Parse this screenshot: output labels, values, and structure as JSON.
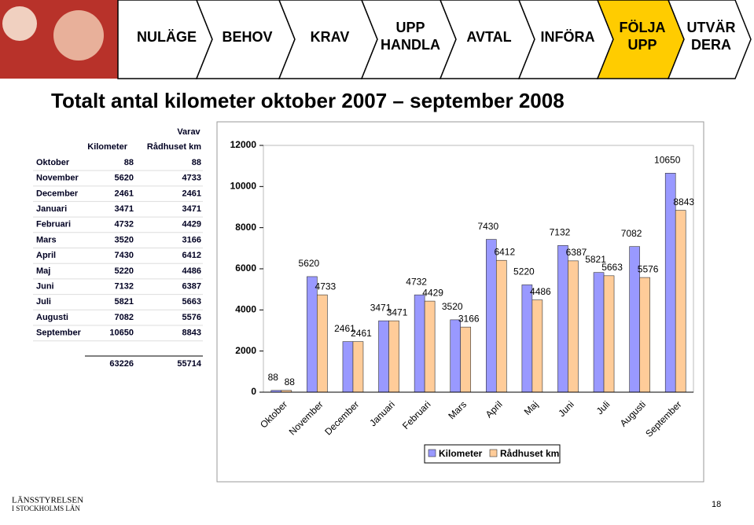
{
  "nav": [
    [
      "NULÄGE"
    ],
    [
      "BEHOV"
    ],
    [
      "KRAV"
    ],
    [
      "UPP",
      "HANDLA"
    ],
    [
      "AVTAL"
    ],
    [
      "INFÖRA"
    ],
    [
      "FÖLJA",
      "UPP"
    ],
    [
      "UTVÄR",
      "DERA"
    ]
  ],
  "title": "Totalt antal kilometer oktober 2007 – september 2008",
  "table": {
    "group_header": "Varav",
    "headers": [
      "Kilometer",
      "Rådhuset km"
    ],
    "rows": [
      [
        "Oktober",
        "88",
        "88"
      ],
      [
        "November",
        "5620",
        "4733"
      ],
      [
        "December",
        "2461",
        "2461"
      ],
      [
        "Januari",
        "3471",
        "3471"
      ],
      [
        "Februari",
        "4732",
        "4429"
      ],
      [
        "Mars",
        "3520",
        "3166"
      ],
      [
        "April",
        "7430",
        "6412"
      ],
      [
        "Maj",
        "5220",
        "4486"
      ],
      [
        "Juni",
        "7132",
        "6387"
      ],
      [
        "Juli",
        "5821",
        "5663"
      ],
      [
        "Augusti",
        "7082",
        "5576"
      ],
      [
        "September",
        "10650",
        "8843"
      ]
    ],
    "totals": [
      "63226",
      "55714"
    ]
  },
  "chart_data": {
    "type": "bar",
    "categories": [
      "Oktober",
      "November",
      "December",
      "Januari",
      "Februari",
      "Mars",
      "April",
      "Maj",
      "Juni",
      "Juli",
      "Augusti",
      "September"
    ],
    "series": [
      {
        "name": "Kilometer",
        "color": "#9999ff",
        "values": [
          88,
          5620,
          2461,
          3471,
          4732,
          3520,
          7430,
          5220,
          7132,
          5821,
          7082,
          10650
        ]
      },
      {
        "name": "Rådhuset km",
        "color": "#ffcc99",
        "values": [
          88,
          4733,
          2461,
          3471,
          4429,
          3166,
          6412,
          4486,
          6387,
          5663,
          5576,
          8843
        ]
      }
    ],
    "ylim": [
      0,
      12000
    ],
    "yticks": [
      0,
      2000,
      4000,
      6000,
      8000,
      10000,
      12000
    ]
  },
  "footer": {
    "org": [
      "LÄNSSTYRELSEN",
      "I STOCKHOLMS LÄN"
    ],
    "page": "18"
  }
}
